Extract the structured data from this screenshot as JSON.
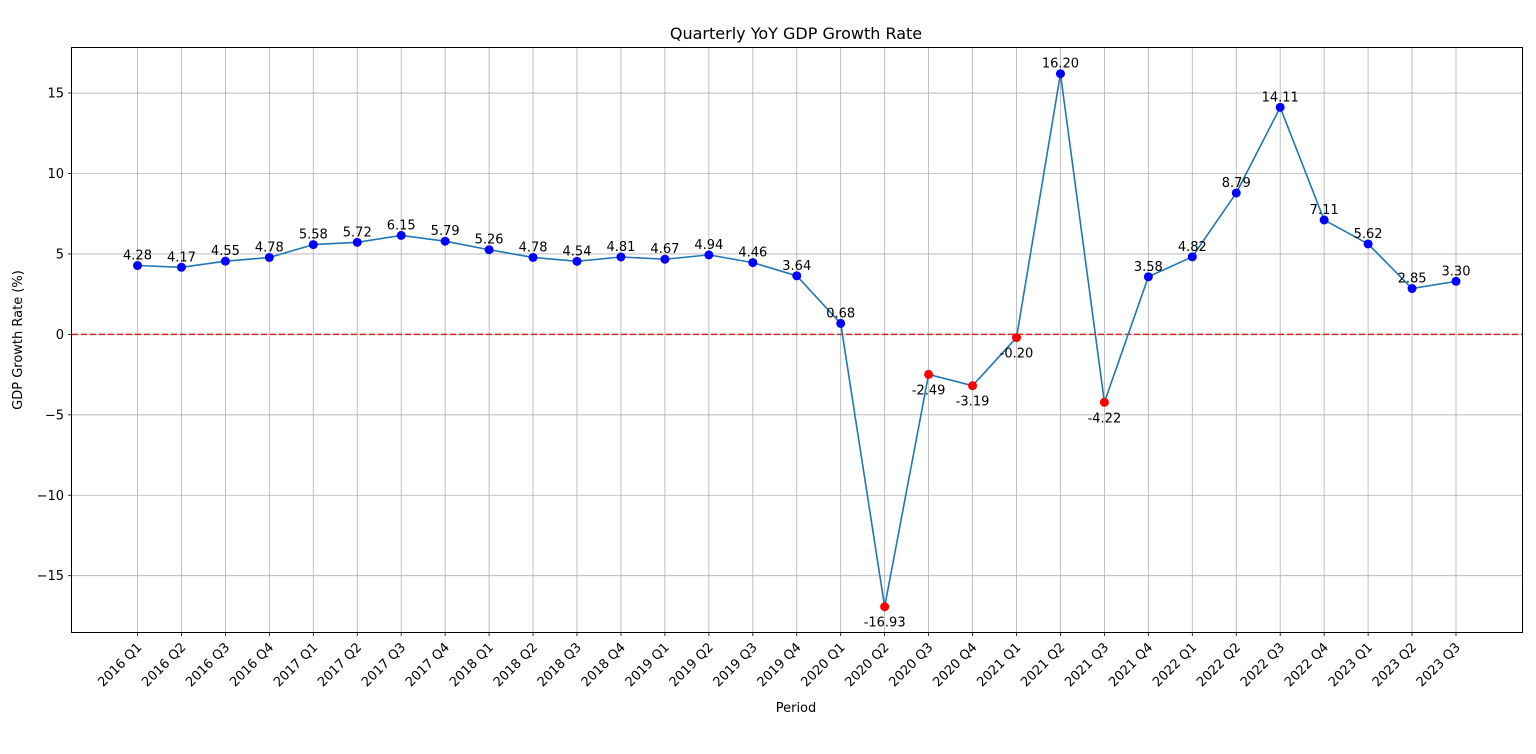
{
  "chart_data": {
    "type": "line",
    "title": "Quarterly YoY GDP Growth Rate",
    "xlabel": "Period",
    "ylabel": "GDP Growth Rate (%)",
    "ylim": [
      -18.5,
      17.8
    ],
    "yticks": [
      -15,
      -10,
      -5,
      0,
      5,
      10,
      15
    ],
    "ytick_labels": [
      "−15",
      "−10",
      "−5",
      "0",
      "5",
      "10",
      "15"
    ],
    "grid": true,
    "reference_line": {
      "y": 0,
      "color": "#d62728",
      "style": "dashed"
    },
    "line_color": "#1f77b4",
    "positive_marker_color": "#0000ff",
    "negative_marker_color": "#ff0000",
    "categories": [
      "2016 Q1",
      "2016 Q2",
      "2016 Q3",
      "2016 Q4",
      "2017 Q1",
      "2017 Q2",
      "2017 Q3",
      "2017 Q4",
      "2018 Q1",
      "2018 Q2",
      "2018 Q3",
      "2018 Q4",
      "2019 Q1",
      "2019 Q2",
      "2019 Q3",
      "2019 Q4",
      "2020 Q1",
      "2020 Q2",
      "2020 Q3",
      "2020 Q4",
      "2021 Q1",
      "2021 Q2",
      "2021 Q3",
      "2021 Q4",
      "2022 Q1",
      "2022 Q2",
      "2022 Q3",
      "2022 Q4",
      "2023 Q1",
      "2023 Q2",
      "2023 Q3"
    ],
    "values": [
      4.28,
      4.17,
      4.55,
      4.78,
      5.58,
      5.72,
      6.15,
      5.79,
      5.26,
      4.78,
      4.54,
      4.81,
      4.67,
      4.94,
      4.46,
      3.64,
      0.68,
      -16.93,
      -2.49,
      -3.19,
      -0.2,
      16.2,
      -4.22,
      3.58,
      4.82,
      8.79,
      14.11,
      7.11,
      5.62,
      2.85,
      3.3
    ],
    "value_labels": [
      "4.28",
      "4.17",
      "4.55",
      "4.78",
      "5.58",
      "5.72",
      "6.15",
      "5.79",
      "5.26",
      "4.78",
      "4.54",
      "4.81",
      "4.67",
      "4.94",
      "4.46",
      "3.64",
      "0.68",
      "-16.93",
      "-2.49",
      "-3.19",
      "-0.20",
      "16.20",
      "-4.22",
      "3.58",
      "4.82",
      "8.79",
      "14.11",
      "7.11",
      "5.62",
      "2.85",
      "3.30"
    ]
  }
}
